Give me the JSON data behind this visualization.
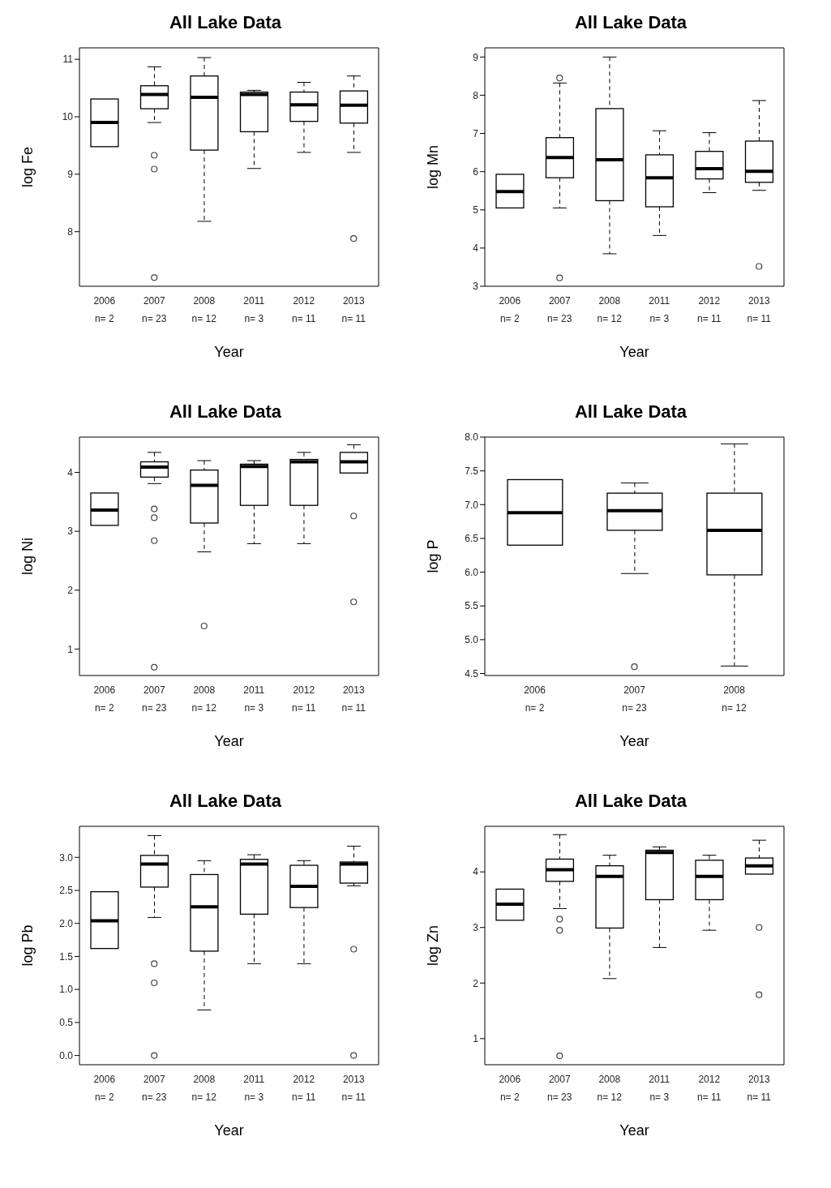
{
  "chart_data": [
    {
      "type": "box",
      "title": "All Lake Data",
      "xlabel": "Year",
      "ylabel": "log Fe",
      "categories": [
        "2006\nn= 2",
        "2007\nn= 23",
        "2008\nn= 12",
        "2011\nn= 3",
        "2012\nn= 11",
        "2013\nn= 11"
      ],
      "ylim": [
        7.05,
        11.2
      ],
      "yticks": [
        8,
        9,
        10,
        11
      ],
      "boxes": [
        {
          "low": 9.48,
          "q1": 9.48,
          "median": 9.9,
          "q3": 10.31,
          "high": 10.31
        },
        {
          "low": 9.9,
          "q1": 10.14,
          "median": 10.39,
          "q3": 10.54,
          "high": 10.87,
          "outliers": [
            9.33,
            9.09,
            7.2
          ]
        },
        {
          "low": 8.18,
          "q1": 9.42,
          "median": 10.34,
          "q3": 10.71,
          "high": 11.03
        },
        {
          "low": 9.1,
          "q1": 9.74,
          "median": 10.39,
          "q3": 10.43,
          "high": 10.46
        },
        {
          "low": 9.38,
          "q1": 9.92,
          "median": 10.21,
          "q3": 10.43,
          "high": 10.6
        },
        {
          "low": 9.38,
          "q1": 9.89,
          "median": 10.2,
          "q3": 10.45,
          "high": 10.71,
          "outliers": [
            7.88
          ]
        }
      ]
    },
    {
      "type": "box",
      "title": "All Lake Data",
      "xlabel": "Year",
      "ylabel": "log Mn",
      "categories": [
        "2006\nn= 2",
        "2007\nn= 23",
        "2008\nn= 12",
        "2011\nn= 3",
        "2012\nn= 11",
        "2013\nn= 11"
      ],
      "ylim": [
        3,
        9.24
      ],
      "yticks": [
        3,
        4,
        5,
        6,
        7,
        8,
        9
      ],
      "boxes": [
        {
          "low": 5.05,
          "q1": 5.05,
          "median": 5.48,
          "q3": 5.93,
          "high": 5.93
        },
        {
          "low": 5.05,
          "q1": 5.84,
          "median": 6.37,
          "q3": 6.89,
          "high": 8.32,
          "outliers": [
            8.45,
            3.22
          ]
        },
        {
          "low": 3.85,
          "q1": 5.24,
          "median": 6.31,
          "q3": 7.65,
          "high": 9.0
        },
        {
          "low": 4.33,
          "q1": 5.08,
          "median": 5.84,
          "q3": 6.44,
          "high": 7.07
        },
        {
          "low": 5.45,
          "q1": 5.81,
          "median": 6.08,
          "q3": 6.53,
          "high": 7.02
        },
        {
          "low": 5.51,
          "q1": 5.72,
          "median": 6.01,
          "q3": 6.8,
          "high": 7.86,
          "outliers": [
            3.52
          ]
        }
      ]
    },
    {
      "type": "box",
      "title": "All Lake Data",
      "xlabel": "Year",
      "ylabel": "log Ni",
      "categories": [
        "2006\nn= 2",
        "2007\nn= 23",
        "2008\nn= 12",
        "2011\nn= 3",
        "2012\nn= 11",
        "2013\nn= 11"
      ],
      "ylim": [
        0.55,
        4.6
      ],
      "yticks": [
        1,
        2,
        3,
        4
      ],
      "boxes": [
        {
          "low": 3.1,
          "q1": 3.1,
          "median": 3.36,
          "q3": 3.65,
          "high": 3.65
        },
        {
          "low": 3.81,
          "q1": 3.92,
          "median": 4.09,
          "q3": 4.18,
          "high": 4.34,
          "outliers": [
            3.38,
            3.23,
            2.84,
            0.69
          ]
        },
        {
          "low": 2.65,
          "q1": 3.14,
          "median": 3.78,
          "q3": 4.04,
          "high": 4.2,
          "outliers": [
            1.39
          ]
        },
        {
          "low": 2.79,
          "q1": 3.44,
          "median": 4.1,
          "q3": 4.14,
          "high": 4.2
        },
        {
          "low": 2.79,
          "q1": 3.44,
          "median": 4.18,
          "q3": 4.22,
          "high": 4.34
        },
        {
          "low": 3.99,
          "q1": 3.99,
          "median": 4.18,
          "q3": 4.34,
          "high": 4.47,
          "outliers": [
            3.26,
            1.8
          ]
        }
      ]
    },
    {
      "type": "box",
      "title": "All Lake Data",
      "xlabel": "Year",
      "ylabel": "log P",
      "categories": [
        "2006\nn= 2",
        "2007\nn= 23",
        "2008\nn= 12"
      ],
      "ylim": [
        4.47,
        8.0
      ],
      "yticks": [
        4.5,
        {
          "value": 5,
          "label": "5.0"
        },
        5.5,
        {
          "value": 6,
          "label": "6.0"
        },
        6.5,
        {
          "value": 7,
          "label": "7.0"
        },
        7.5,
        {
          "value": 8,
          "label": "8.0"
        }
      ],
      "boxes": [
        {
          "low": 6.4,
          "q1": 6.4,
          "median": 6.88,
          "q3": 7.37,
          "high": 7.37
        },
        {
          "low": 5.98,
          "q1": 6.62,
          "median": 6.91,
          "q3": 7.17,
          "high": 7.32,
          "outliers": [
            4.6
          ]
        },
        {
          "low": 4.61,
          "q1": 5.96,
          "median": 6.62,
          "q3": 7.17,
          "high": 7.9
        }
      ]
    },
    {
      "type": "box",
      "title": "All Lake Data",
      "xlabel": "Year",
      "ylabel": "log Pb",
      "categories": [
        "2006\nn= 2",
        "2007\nn= 23",
        "2008\nn= 12",
        "2011\nn= 3",
        "2012\nn= 11",
        "2013\nn= 11"
      ],
      "ylim": [
        -0.14,
        3.47
      ],
      "yticks": [
        {
          "value": 0,
          "label": "0.0"
        },
        0.5,
        {
          "value": 1,
          "label": "1.0"
        },
        1.5,
        {
          "value": 2,
          "label": "2.0"
        },
        2.5,
        {
          "value": 3,
          "label": "3.0"
        }
      ],
      "boxes": [
        {
          "low": 1.62,
          "q1": 1.62,
          "median": 2.04,
          "q3": 2.48,
          "high": 2.48
        },
        {
          "low": 2.09,
          "q1": 2.55,
          "median": 2.9,
          "q3": 3.03,
          "high": 3.33,
          "outliers": [
            1.39,
            1.1,
            0
          ]
        },
        {
          "low": 0.69,
          "q1": 1.58,
          "median": 2.25,
          "q3": 2.74,
          "high": 2.95
        },
        {
          "low": 1.39,
          "q1": 2.14,
          "median": 2.9,
          "q3": 2.97,
          "high": 3.04
        },
        {
          "low": 1.39,
          "q1": 2.24,
          "median": 2.56,
          "q3": 2.88,
          "high": 2.95
        },
        {
          "low": 2.57,
          "q1": 2.61,
          "median": 2.9,
          "q3": 2.93,
          "high": 3.17,
          "outliers": [
            1.61,
            0
          ]
        }
      ]
    },
    {
      "type": "box",
      "title": "All Lake Data",
      "xlabel": "Year",
      "ylabel": "log Zn",
      "categories": [
        "2006\nn= 2",
        "2007\nn= 23",
        "2008\nn= 12",
        "2011\nn= 3",
        "2012\nn= 11",
        "2013\nn= 11"
      ],
      "ylim": [
        0.53,
        4.82
      ],
      "yticks": [
        1,
        2,
        3,
        4
      ],
      "boxes": [
        {
          "low": 3.13,
          "q1": 3.13,
          "median": 3.42,
          "q3": 3.69,
          "high": 3.69
        },
        {
          "low": 3.34,
          "q1": 3.83,
          "median": 4.04,
          "q3": 4.23,
          "high": 4.67,
          "outliers": [
            3.15,
            2.95,
            0.69
          ]
        },
        {
          "low": 2.08,
          "q1": 2.99,
          "median": 3.92,
          "q3": 4.11,
          "high": 4.3
        },
        {
          "low": 2.64,
          "q1": 3.5,
          "median": 4.35,
          "q3": 4.39,
          "high": 4.45
        },
        {
          "low": 2.95,
          "q1": 3.5,
          "median": 3.92,
          "q3": 4.21,
          "high": 4.3
        },
        {
          "low": 3.96,
          "q1": 3.96,
          "median": 4.11,
          "q3": 4.25,
          "high": 4.57,
          "outliers": [
            3.0,
            1.79
          ]
        }
      ]
    }
  ]
}
